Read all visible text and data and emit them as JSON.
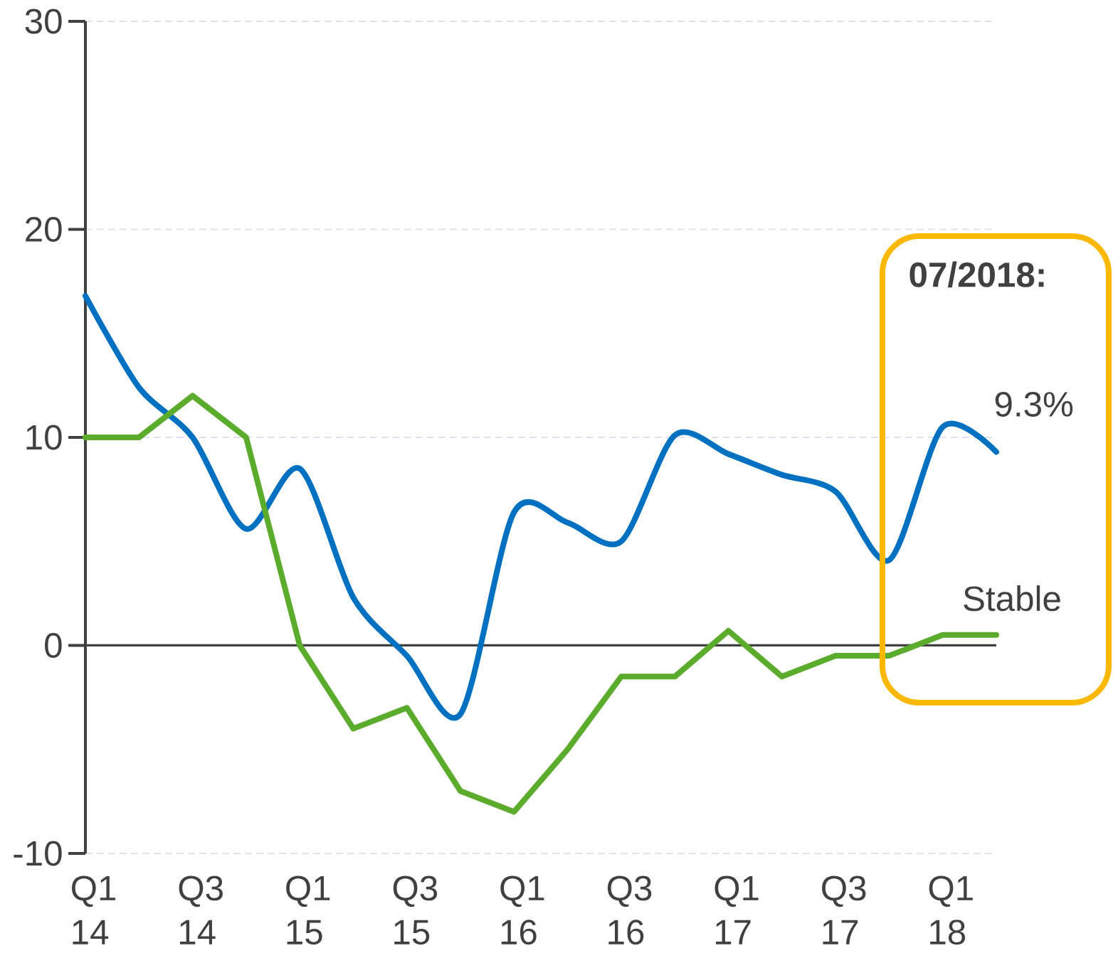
{
  "chart_data": {
    "type": "line",
    "categories": [
      "Q1 14",
      null,
      "Q3 14",
      null,
      "Q1 15",
      null,
      "Q3 15",
      null,
      "Q1 16",
      null,
      "Q3 16",
      null,
      "Q1 17",
      null,
      "Q3 17",
      null,
      "Q1 18",
      null
    ],
    "series": [
      {
        "color": "#0070c0",
        "values": [
          16.8,
          12.4,
          10.0,
          5.6,
          8.5,
          2.3,
          -0.5,
          -3.3,
          6.4,
          5.9,
          5.0,
          10.1,
          9.2,
          8.2,
          7.4,
          4.1,
          10.5,
          9.3
        ],
        "value_labels": [
          null,
          null,
          null,
          null,
          null,
          null,
          null,
          null,
          null,
          null,
          null,
          null,
          null,
          null,
          null,
          null,
          null,
          "9.3%"
        ]
      },
      {
        "color": "#5bac2c",
        "values": [
          10,
          10,
          12,
          10,
          0,
          -4,
          -3,
          -7,
          -8,
          -5,
          -1.5,
          -1.5,
          0.7,
          -1.5,
          -0.5,
          -0.5,
          0.5,
          0.5
        ]
      }
    ],
    "ylim": [
      -10,
      30
    ],
    "yticks": [
      -10,
      0,
      10,
      20,
      30
    ],
    "grid": "y",
    "ref_lines": [
      {
        "axis": "y",
        "value": 0,
        "color": "#404040"
      }
    ],
    "annotations": [
      "07/2018:",
      "Stable"
    ]
  }
}
